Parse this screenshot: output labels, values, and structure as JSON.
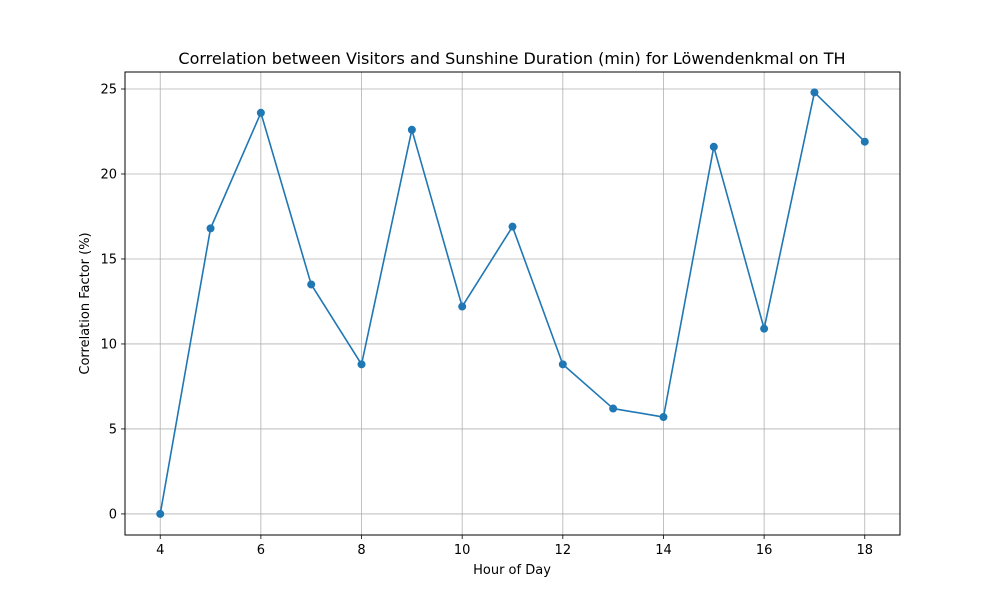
{
  "chart_data": {
    "type": "line",
    "title": "Correlation between Visitors and Sunshine Duration (min) for Löwendenkmal on TH",
    "xlabel": "Hour of Day",
    "ylabel": "Correlation Factor (%)",
    "xlim": [
      3.3,
      18.7
    ],
    "ylim": [
      -1.24,
      26.0
    ],
    "xticks": [
      4,
      6,
      8,
      10,
      12,
      14,
      16,
      18
    ],
    "yticks": [
      0,
      5,
      10,
      15,
      20,
      25
    ],
    "grid": true,
    "series": [
      {
        "color": "#1f77b4",
        "marker": "circle",
        "x": [
          4,
          5,
          6,
          7,
          8,
          9,
          10,
          11,
          12,
          13,
          14,
          15,
          16,
          17,
          18
        ],
        "y": [
          0.0,
          16.8,
          23.6,
          13.5,
          8.8,
          22.6,
          12.2,
          16.9,
          8.8,
          6.2,
          5.7,
          21.6,
          10.9,
          24.8,
          21.9
        ]
      }
    ]
  }
}
